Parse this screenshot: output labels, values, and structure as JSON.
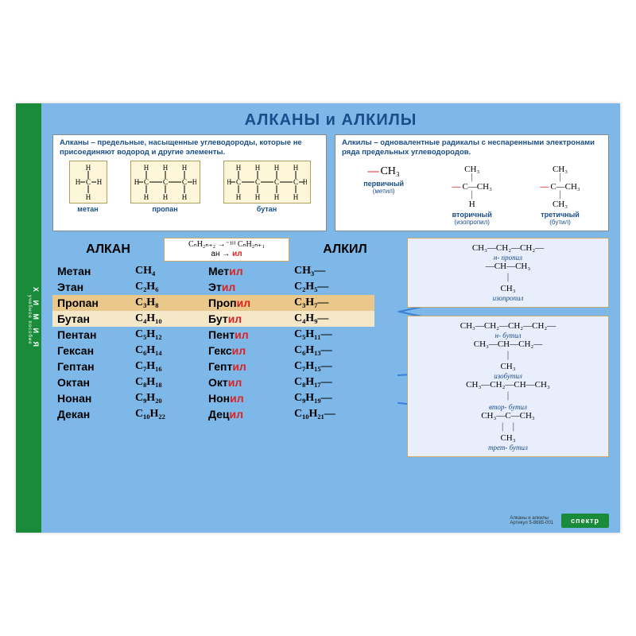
{
  "colors": {
    "poster_bg": "#7db8e8",
    "strip_bg": "#1a8b3a",
    "title_color": "#1a4d8a",
    "def_box_bg": "#ffffff",
    "mol_frame_bg": "#fdf6d8",
    "mol_frame_border": "#b0a060",
    "stripe_dark": "#eac78a",
    "stripe_light": "#f5e8c8",
    "iso_bg": "#e8eefc",
    "iso_border": "#c5a96a",
    "arrow": "#3a7fd9",
    "red": "#d22222"
  },
  "strip": {
    "title": "Х И М И Я",
    "subtitle": "учебное пособие"
  },
  "title": "АЛКАНЫ и АЛКИЛЫ",
  "defs": {
    "left": "Алканы – предельные, насыщенные углеводороды, которые не присоединяют водород и другие элементы.",
    "right": "Алкилы – одновалентные радикалы с неспаренными электронами ряда предельных углеводородов."
  },
  "left_structs": [
    {
      "label": "метан",
      "carbons": 1
    },
    {
      "label": "пропан",
      "carbons": 3
    },
    {
      "label": "бутан",
      "carbons": 4
    }
  ],
  "right_structs": [
    {
      "formula": "—CH₃",
      "label": "первичный",
      "sub": "(метил)"
    },
    {
      "formula_top": "CH₃",
      "formula_mid": "—C—CH₃",
      "formula_bot": "H",
      "label": "вторичный",
      "sub": "(изопропил)"
    },
    {
      "formula_top": "CH₃",
      "formula_mid": "—C—CH₃",
      "formula_bot": "CH₃",
      "label": "третичный",
      "sub": "(бутил)"
    }
  ],
  "table_header": {
    "left": "АЛКАН",
    "right": "АЛКИЛ",
    "formula_line1": "CₙH₂ₙ₊₂ →⁻¹ᴴ CₙH₂ₙ₊₁",
    "formula_line2_pre": "ан → ",
    "formula_line2_suf": "ил"
  },
  "rows": [
    {
      "alkane": "Метан",
      "aform": "CH₄",
      "alkyl_pre": "Мет",
      "alkyl_suf": "ил",
      "yform": "CH₃—",
      "stripe": 0
    },
    {
      "alkane": "Этан",
      "aform": "C₂H₆",
      "alkyl_pre": "Эт",
      "alkyl_suf": "ил",
      "yform": "C₂H₅—",
      "stripe": 0
    },
    {
      "alkane": "Пропан",
      "aform": "C₃H₈",
      "alkyl_pre": "Проп",
      "alkyl_suf": "ил",
      "yform": "C₃H₇—",
      "stripe": 2
    },
    {
      "alkane": "Бутан",
      "aform": "C₄H₁₀",
      "alkyl_pre": "Бут",
      "alkyl_suf": "ил",
      "yform": "C₄H₉—",
      "stripe": 1
    },
    {
      "alkane": "Пентан",
      "aform": "C₅H₁₂",
      "alkyl_pre": "Пент",
      "alkyl_suf": "ил",
      "yform": "C₅H₁₁—",
      "stripe": 0
    },
    {
      "alkane": "Гексан",
      "aform": "C₆H₁₄",
      "alkyl_pre": "Гекс",
      "alkyl_suf": "ил",
      "yform": "C₆H₁₃—",
      "stripe": 0
    },
    {
      "alkane": "Гептан",
      "aform": "C₇H₁₆",
      "alkyl_pre": "Гепт",
      "alkyl_suf": "ил",
      "yform": "C₇H₁₅—",
      "stripe": 0
    },
    {
      "alkane": "Октан",
      "aform": "C₈H₁₈",
      "alkyl_pre": "Окт",
      "alkyl_suf": "ил",
      "yform": "C₈H₁₇—",
      "stripe": 0
    },
    {
      "alkane": "Нонан",
      "aform": "C₉H₂₀",
      "alkyl_pre": "Нон",
      "alkyl_suf": "ил",
      "yform": "C₉H₁₉—",
      "stripe": 0
    },
    {
      "alkane": "Декан",
      "aform": "C₁₀H₂₂",
      "alkyl_pre": "Дец",
      "alkyl_suf": "ил",
      "yform": "C₁₀H₂₁—",
      "stripe": 0
    }
  ],
  "iso1": {
    "lines": [
      "CH₃—CH₂—CH₂—",
      "н- пропил",
      "—CH—CH₃",
      "｜",
      "CH₃",
      "изопропил"
    ]
  },
  "iso2": {
    "lines": [
      "CH₃—CH₂—CH₂—CH₂—",
      "н- бутил",
      "CH₃—CH—CH₂—",
      "｜",
      "CH₃",
      "изобутил",
      "CH₃—CH₂—CH—CH₃",
      "｜",
      "втор- бутил",
      "CH₃—C—CH₃",
      "｜  ｜",
      "CH₃",
      "трет- бутил"
    ]
  },
  "footer": {
    "brand": "спектр",
    "info1": "Алканы и алкилы",
    "info2": "Артикул 5-8685-001"
  }
}
